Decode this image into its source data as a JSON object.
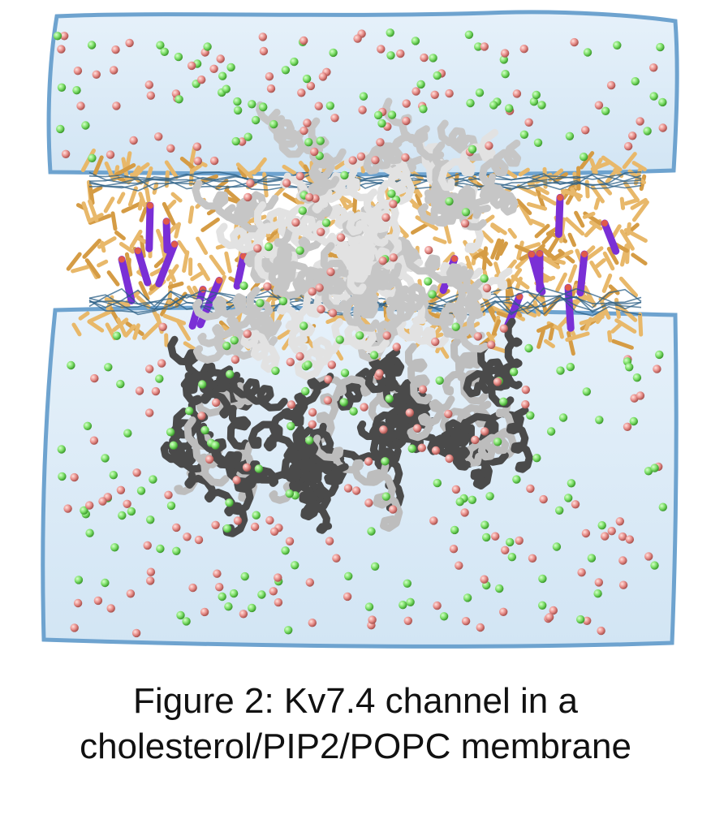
{
  "caption": {
    "line1": "Figure 2: Kv7.4 channel in a",
    "line2": "cholesterol/PIP2/POPC membrane"
  },
  "colors": {
    "water": "#d6e8f5",
    "water_edge": "#5b95c6",
    "lipid_tail": "#e8b86a",
    "cholesterol": "#7a2fd6",
    "headgroup_mesh": "#2b5f86",
    "protein_tm": "#d8d8d8",
    "protein_cyto": "#505050",
    "ion_green": "#7ee06a",
    "ion_red": "#e9908c"
  }
}
